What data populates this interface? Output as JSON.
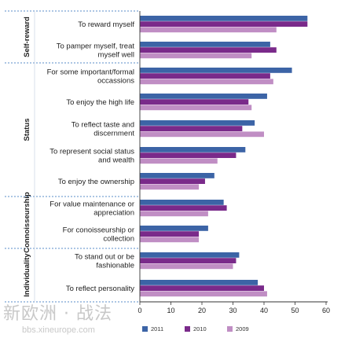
{
  "chart_data": {
    "type": "bar",
    "orientation": "horizontal",
    "groups": [
      {
        "label": "Self-reward",
        "categories": [
          0,
          1
        ]
      },
      {
        "label": "Status",
        "categories": [
          2,
          3,
          4,
          5,
          6
        ]
      },
      {
        "label": "Connoisseurship",
        "categories": [
          7,
          8
        ]
      },
      {
        "label": "Individuality",
        "categories": [
          9,
          10
        ]
      }
    ],
    "categories": [
      [
        "To reward myself"
      ],
      [
        "To pamper myself, treat",
        "myself well"
      ],
      [
        "For some important/formal",
        "occassions"
      ],
      [
        "To enjoy the high life"
      ],
      [
        "To reflect taste and",
        "discernment"
      ],
      [
        "To represent social status",
        "and wealth"
      ],
      [
        "To enjoy the ownership"
      ],
      [
        "For value maintenance or",
        "appreciation"
      ],
      [
        "For conoisseurship or",
        "collection"
      ],
      [
        "To stand out or be",
        "fashionable"
      ],
      [
        "To reflect personality"
      ]
    ],
    "series": [
      {
        "name": "2011",
        "color": "#3c64a6",
        "values": [
          54,
          42,
          49,
          41,
          37,
          34,
          24,
          27,
          22,
          32,
          38
        ]
      },
      {
        "name": "2010",
        "color": "#7a2a8a",
        "values": [
          54,
          44,
          42,
          35,
          33,
          31,
          21,
          28,
          19,
          31,
          40
        ]
      },
      {
        "name": "2009",
        "color": "#c08ec4",
        "values": [
          44,
          36,
          43,
          36,
          40,
          25,
          19,
          22,
          19,
          30,
          41
        ]
      }
    ],
    "xlim": [
      0,
      60
    ],
    "xticks": [
      0,
      10,
      20,
      30,
      40,
      50,
      60
    ],
    "legend_position": "bottom",
    "grid": false
  },
  "watermark": {
    "main": "新欧洲 · 战法",
    "sub": "bbs.xineurope.com"
  }
}
